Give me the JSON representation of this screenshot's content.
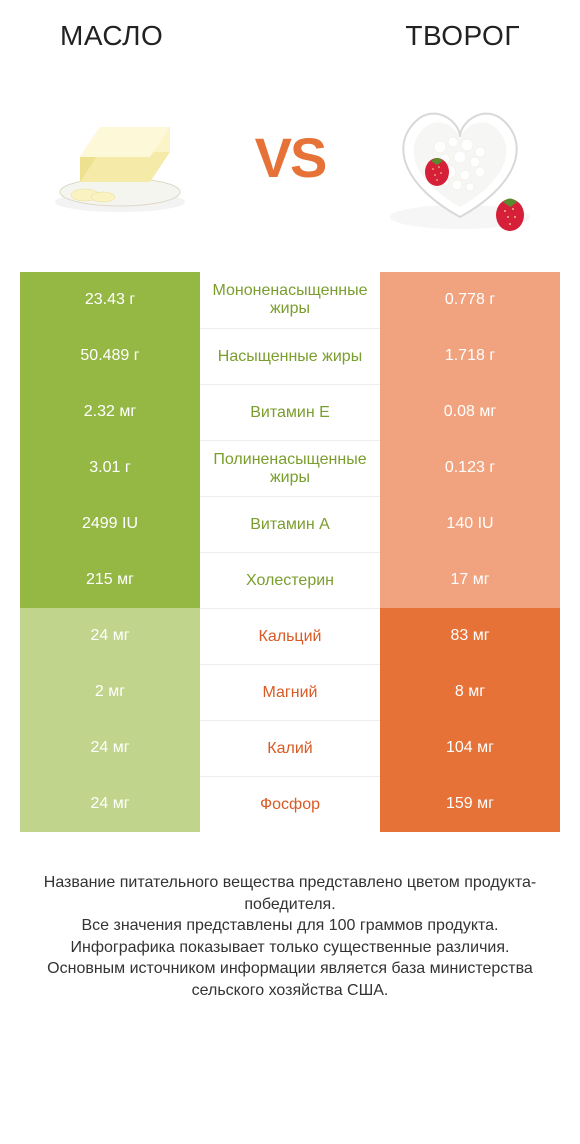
{
  "header": {
    "left_title": "МАСЛО",
    "right_title": "ТВОРОГ",
    "vs_label": "VS"
  },
  "colors": {
    "left_winner": "#95b845",
    "left_loser": "#c0d48b",
    "right_winner": "#e67237",
    "right_loser": "#f0a37e",
    "mid_left_text": "#7a9e2e",
    "mid_right_text": "#d85a24",
    "mid_border": "#eeeeee",
    "text": "#333333",
    "vs_color": "#e67237"
  },
  "table": {
    "rows": [
      {
        "left": "23.43 г",
        "label": "Мононенасыщенные жиры",
        "right": "0.778 г",
        "winner": "left"
      },
      {
        "left": "50.489 г",
        "label": "Насыщенные жиры",
        "right": "1.718 г",
        "winner": "left"
      },
      {
        "left": "2.32 мг",
        "label": "Витамин E",
        "right": "0.08 мг",
        "winner": "left"
      },
      {
        "left": "3.01 г",
        "label": "Полиненасыщенные жиры",
        "right": "0.123 г",
        "winner": "left"
      },
      {
        "left": "2499 IU",
        "label": "Витамин A",
        "right": "140 IU",
        "winner": "left"
      },
      {
        "left": "215 мг",
        "label": "Холестерин",
        "right": "17 мг",
        "winner": "left"
      },
      {
        "left": "24 мг",
        "label": "Кальций",
        "right": "83 мг",
        "winner": "right"
      },
      {
        "left": "2 мг",
        "label": "Магний",
        "right": "8 мг",
        "winner": "right"
      },
      {
        "left": "24 мг",
        "label": "Калий",
        "right": "104 мг",
        "winner": "right"
      },
      {
        "left": "24 мг",
        "label": "Фосфор",
        "right": "159 мг",
        "winner": "right"
      }
    ]
  },
  "footer": {
    "line1": "Название питательного вещества представлено цветом продукта-победителя.",
    "line2": "Все значения представлены для 100 граммов продукта.",
    "line3": "Инфографика показывает только существенные различия.",
    "line4": "Основным источником информации является база министерства сельского хозяйства США."
  },
  "typography": {
    "title_fontsize": 28,
    "vs_fontsize": 56,
    "cell_fontsize": 16,
    "footer_fontsize": 16
  }
}
